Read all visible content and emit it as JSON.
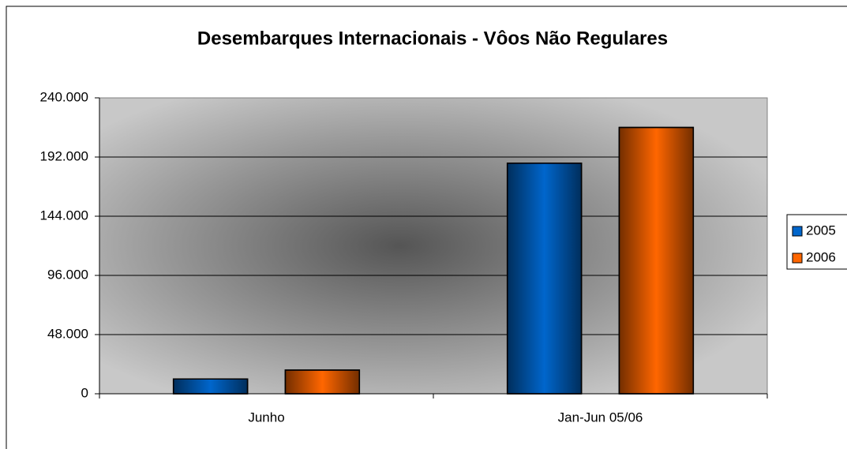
{
  "chart_data": {
    "type": "bar",
    "title": "Desembarques Internacionais - Vôos Não Regulares",
    "categories": [
      "Junho",
      "Jan-Jun 05/06"
    ],
    "series": [
      {
        "name": "2005",
        "color": "#0066cc",
        "values": [
          12000,
          187000
        ]
      },
      {
        "name": "2006",
        "color": "#ff6600",
        "values": [
          19200,
          216000
        ]
      }
    ],
    "ylim": [
      0,
      240000
    ],
    "yticks": [
      0,
      {
        "value": 48000,
        "label": "48.000"
      },
      {
        "value": 96000,
        "label": "96.000"
      },
      {
        "value": 144000,
        "label": "144.000"
      },
      {
        "value": 192000,
        "label": "192.000"
      },
      {
        "value": 240000,
        "label": "240.000"
      }
    ],
    "grid": true,
    "legend": "right"
  }
}
